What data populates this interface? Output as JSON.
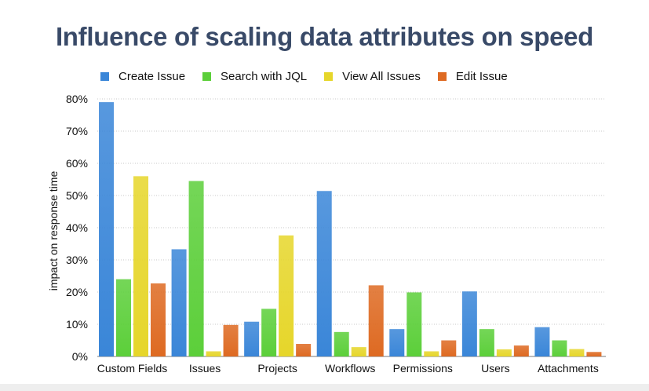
{
  "chart_data": {
    "type": "bar",
    "title": "Influence of scaling data attributes on speed",
    "xlabel": "",
    "ylabel": "impact on response time",
    "ylim": [
      0,
      80
    ],
    "yticks": [
      "0%",
      "10%",
      "20%",
      "30%",
      "40%",
      "50%",
      "60%",
      "70%",
      "80%"
    ],
    "grid": true,
    "legend_position": "top",
    "categories": [
      "Custom Fields",
      "Issues",
      "Projects",
      "Workflows",
      "Permissions",
      "Users",
      "Attachments"
    ],
    "series": [
      {
        "name": "Create Issue",
        "color": "#3a86d8",
        "values": [
          79,
          33.3,
          10.8,
          51.4,
          8.5,
          20.2,
          9.1
        ]
      },
      {
        "name": "Search with JQL",
        "color": "#5ccf3a",
        "values": [
          24,
          54.5,
          14.8,
          7.6,
          19.9,
          8.5,
          5
        ]
      },
      {
        "name": "View All Issues",
        "color": "#e6d62a",
        "values": [
          56,
          1.6,
          37.6,
          2.9,
          1.6,
          2.2,
          2.3
        ]
      },
      {
        "name": "Edit Issue",
        "color": "#de6a22",
        "values": [
          22.7,
          9.8,
          3.9,
          22.1,
          5,
          3.4,
          1.4
        ]
      }
    ]
  }
}
